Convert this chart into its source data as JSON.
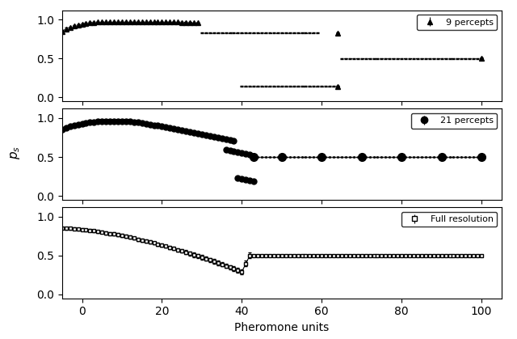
{
  "xlabel": "Pheromone units",
  "ylabel": "$p_s$",
  "panel1_label": "9 percepts",
  "panel2_label": "21 percepts",
  "panel3_label": "Full resolution",
  "xlim": [
    -5,
    105
  ],
  "yticks": [
    0.0,
    0.5,
    1.0
  ],
  "xticks": [
    0,
    20,
    40,
    60,
    80,
    100
  ]
}
